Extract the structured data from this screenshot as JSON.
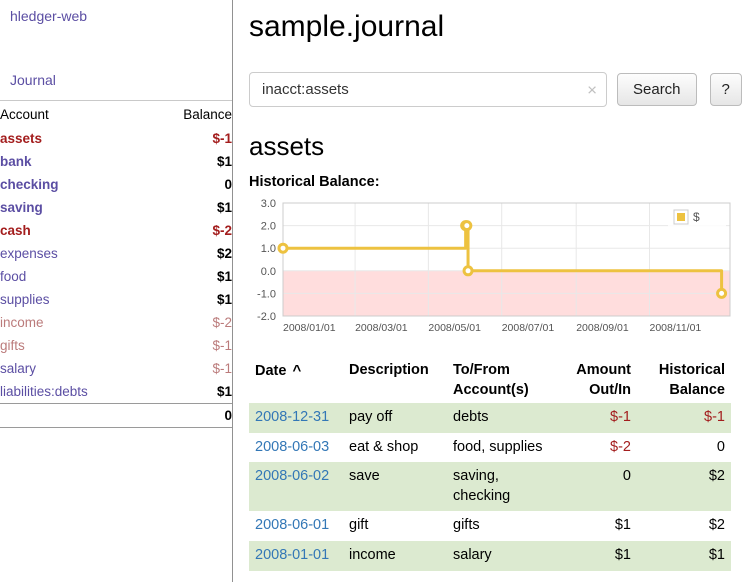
{
  "colors": {
    "link_purple": "#5b4ea3",
    "negative_strong": "#a31d1d",
    "negative_soft": "#bb7b7b",
    "date_link_blue": "#3377b6",
    "row_stripe_green": "#dcead0",
    "series_gold": "#edc240",
    "negative_region_pink": "#ffdddd"
  },
  "sidebar": {
    "brand": "hledger-web",
    "nav_journal": "Journal",
    "accounts": {
      "header_account": "Account",
      "header_balance": "Balance",
      "rows": [
        {
          "name": "assets",
          "balance": "$-1"
        },
        {
          "name": "bank",
          "balance": "$1"
        },
        {
          "name": "checking",
          "balance": "0"
        },
        {
          "name": "saving",
          "balance": "$1"
        },
        {
          "name": "cash",
          "balance": "$-2"
        },
        {
          "name": "expenses",
          "balance": "$2"
        },
        {
          "name": "food",
          "balance": "$1"
        },
        {
          "name": "supplies",
          "balance": "$1"
        },
        {
          "name": "income",
          "balance": "$-2"
        },
        {
          "name": "gifts",
          "balance": "$-1"
        },
        {
          "name": "salary",
          "balance": "$-1"
        },
        {
          "name": "liabilities:debts",
          "balance": "$1"
        }
      ],
      "total": "0"
    }
  },
  "main": {
    "title": "sample.journal",
    "search": {
      "value": "inacct:assets",
      "clear_icon": "×",
      "button": "Search",
      "help_button": "?"
    },
    "account_heading": "assets",
    "chart_label": "Historical Balance:",
    "register": {
      "headers": {
        "date": "Date",
        "sort_icon": "^",
        "description": "Description",
        "accounts": "To/From Account(s)",
        "amount": "Amount Out/In",
        "balance": "Historical Balance"
      },
      "rows": [
        {
          "date": "2008-12-31",
          "description": "pay off",
          "accounts": "debts",
          "amount": "$-1",
          "balance": "$-1"
        },
        {
          "date": "2008-06-03",
          "description": "eat & shop",
          "accounts": "food, supplies",
          "amount": "$-2",
          "balance": "0"
        },
        {
          "date": "2008-06-02",
          "description": "save",
          "accounts": "saving, checking",
          "amount": "0",
          "balance": "$2"
        },
        {
          "date": "2008-06-01",
          "description": "gift",
          "accounts": "gifts",
          "amount": "$1",
          "balance": "$2"
        },
        {
          "date": "2008-01-01",
          "description": "income",
          "accounts": "salary",
          "amount": "$1",
          "balance": "$1"
        }
      ]
    }
  },
  "chart_data": {
    "type": "line",
    "title": "Historical Balance:",
    "step": true,
    "series": [
      {
        "name": "$",
        "color": "#edc240",
        "points": [
          {
            "date": "2008-01-01",
            "day": 0,
            "value": 1
          },
          {
            "date": "2008-06-01",
            "day": 152,
            "value": 2
          },
          {
            "date": "2008-06-02",
            "day": 153,
            "value": 2
          },
          {
            "date": "2008-06-03",
            "day": 154,
            "value": 0
          },
          {
            "date": "2008-12-31",
            "day": 365,
            "value": -1
          }
        ]
      }
    ],
    "x_ticks": [
      {
        "day": 0,
        "label": "2008/01/01"
      },
      {
        "day": 60,
        "label": "2008/03/01"
      },
      {
        "day": 121,
        "label": "2008/05/01"
      },
      {
        "day": 182,
        "label": "2008/07/01"
      },
      {
        "day": 244,
        "label": "2008/09/01"
      },
      {
        "day": 305,
        "label": "2008/11/01"
      }
    ],
    "y_ticks": [
      {
        "value": 3,
        "label": "3.0"
      },
      {
        "value": 2,
        "label": "2.0"
      },
      {
        "value": 1,
        "label": "1.0"
      },
      {
        "value": 0,
        "label": "0.0"
      },
      {
        "value": -1,
        "label": "-1.0"
      },
      {
        "value": -2,
        "label": "-2.0"
      }
    ],
    "x_range": {
      "min": 0,
      "max": 372
    },
    "y_range": {
      "min": -2,
      "max": 3
    },
    "negative_region_color": "#ffdddd",
    "grid": true,
    "legend": {
      "label": "$",
      "position": "top-right"
    }
  }
}
